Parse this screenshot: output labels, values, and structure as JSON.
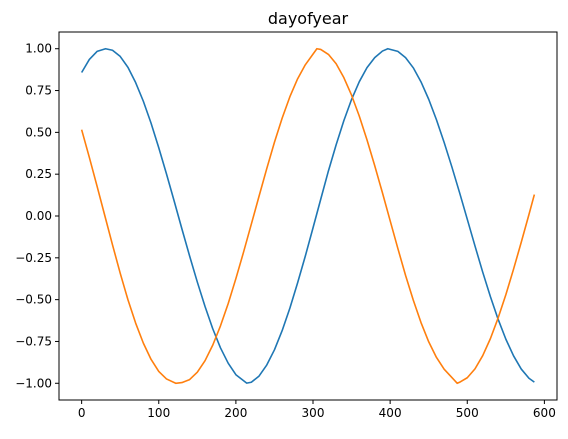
{
  "chart_data": {
    "type": "line",
    "title": "dayofyear",
    "xlabel": "",
    "ylabel": "",
    "xlim": [
      -29.35,
      616.35
    ],
    "ylim": [
      -1.1,
      1.1
    ],
    "x_ticks": [
      0,
      100,
      200,
      300,
      400,
      500,
      600
    ],
    "y_ticks": [
      -1.0,
      -0.75,
      -0.5,
      -0.25,
      0.0,
      0.25,
      0.5,
      0.75,
      1.0
    ],
    "x_tick_labels": [
      "0",
      "100",
      "200",
      "300",
      "400",
      "500",
      "600"
    ],
    "y_tick_labels": [
      "−1.00",
      "−0.75",
      "−0.50",
      "−0.25",
      "0.00",
      "0.25",
      "0.50",
      "0.75",
      "1.00"
    ],
    "grid": false,
    "legend": "none",
    "series": [
      {
        "color": "#1f77b4",
        "x": [
          0,
          10,
          20,
          31,
          40,
          50,
          60,
          70,
          80,
          90,
          100,
          110,
          120,
          130,
          140,
          150,
          160,
          170,
          180,
          190,
          200,
          214,
          220,
          230,
          240,
          250,
          260,
          270,
          280,
          290,
          300,
          310,
          320,
          330,
          340,
          350,
          360,
          370,
          380,
          390,
          397,
          410,
          420,
          430,
          440,
          450,
          460,
          470,
          480,
          490,
          500,
          510,
          520,
          530,
          540,
          550,
          560,
          570,
          580,
          587
        ],
        "y": [
          0.858,
          0.936,
          0.984,
          1.0,
          0.991,
          0.954,
          0.889,
          0.798,
          0.686,
          0.555,
          0.408,
          0.252,
          0.089,
          -0.077,
          -0.239,
          -0.395,
          -0.541,
          -0.674,
          -0.788,
          -0.88,
          -0.949,
          -0.999,
          -0.994,
          -0.957,
          -0.891,
          -0.8,
          -0.685,
          -0.551,
          -0.4,
          -0.24,
          -0.071,
          0.1,
          0.27,
          0.426,
          0.57,
          0.697,
          0.803,
          0.887,
          0.947,
          0.986,
          1.0,
          0.984,
          0.947,
          0.886,
          0.802,
          0.698,
          0.576,
          0.44,
          0.294,
          0.14,
          -0.019,
          -0.179,
          -0.335,
          -0.482,
          -0.617,
          -0.736,
          -0.836,
          -0.915,
          -0.97,
          -0.993
        ]
      },
      {
        "color": "#ff7f0e",
        "x": [
          0,
          10,
          20,
          30,
          40,
          50,
          60,
          70,
          80,
          90,
          100,
          110,
          122,
          130,
          140,
          150,
          160,
          170,
          180,
          190,
          200,
          210,
          220,
          230,
          240,
          250,
          260,
          270,
          280,
          290,
          305,
          310,
          320,
          330,
          340,
          350,
          360,
          370,
          380,
          390,
          400,
          410,
          420,
          430,
          440,
          450,
          460,
          470,
          487,
          490,
          500,
          510,
          520,
          530,
          540,
          550,
          560,
          570,
          580,
          587
        ],
        "y": [
          0.516,
          0.35,
          0.178,
          0.003,
          -0.172,
          -0.342,
          -0.5,
          -0.64,
          -0.76,
          -0.857,
          -0.929,
          -0.974,
          -1.0,
          -0.996,
          -0.978,
          -0.934,
          -0.865,
          -0.772,
          -0.657,
          -0.524,
          -0.374,
          -0.215,
          -0.049,
          0.118,
          0.283,
          0.441,
          0.585,
          0.713,
          0.82,
          0.904,
          1.0,
          0.996,
          0.966,
          0.91,
          0.827,
          0.722,
          0.597,
          0.455,
          0.301,
          0.139,
          -0.028,
          -0.194,
          -0.355,
          -0.503,
          -0.637,
          -0.752,
          -0.845,
          -0.916,
          -1.0,
          -0.994,
          -0.967,
          -0.914,
          -0.835,
          -0.733,
          -0.61,
          -0.471,
          -0.318,
          -0.157,
          0.009,
          0.128
        ]
      }
    ]
  }
}
